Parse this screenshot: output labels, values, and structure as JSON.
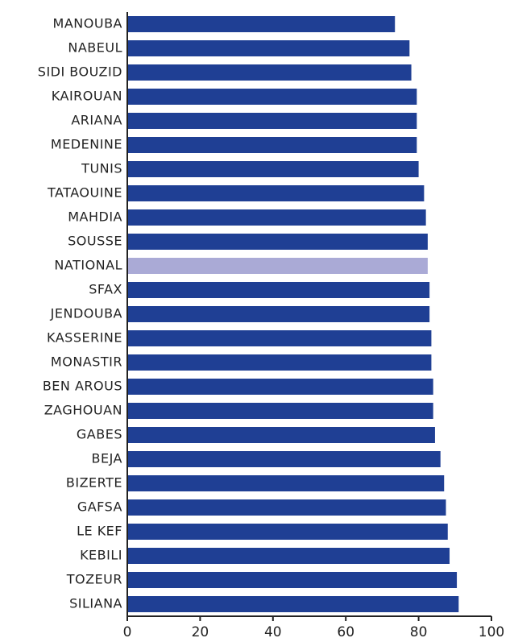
{
  "chart_data": {
    "type": "barh",
    "categories": [
      "MANOUBA",
      "NABEUL",
      "SIDI BOUZID",
      "KAIROUAN",
      "ARIANA",
      "MEDENINE",
      "TUNIS",
      "TATAOUINE",
      "MAHDIA",
      "SOUSSE",
      "NATIONAL",
      "SFAX",
      "JENDOUBA",
      "KASSERINE",
      "MONASTIR",
      "BEN AROUS",
      "ZAGHOUAN",
      "GABES",
      "BEJA",
      "BIZERTE",
      "GAFSA",
      "LE KEF",
      "KEBILI",
      "TOZEUR",
      "SILIANA"
    ],
    "values": [
      73.5,
      77.5,
      78,
      79.5,
      79.5,
      79.5,
      80,
      81.5,
      82,
      82.5,
      82.5,
      83,
      83,
      83.5,
      83.5,
      84,
      84,
      84.5,
      86,
      87,
      87.5,
      88,
      88.5,
      90.5,
      91
    ],
    "colors": [
      "#1f3f94",
      "#1f3f94",
      "#1f3f94",
      "#1f3f94",
      "#1f3f94",
      "#1f3f94",
      "#1f3f94",
      "#1f3f94",
      "#1f3f94",
      "#1f3f94",
      "#aaaad6",
      "#1f3f94",
      "#1f3f94",
      "#1f3f94",
      "#1f3f94",
      "#1f3f94",
      "#1f3f94",
      "#1f3f94",
      "#1f3f94",
      "#1f3f94",
      "#1f3f94",
      "#1f3f94",
      "#1f3f94",
      "#1f3f94",
      "#1f3f94"
    ],
    "xlim": [
      0,
      100
    ],
    "xticks": [
      0,
      20,
      40,
      60,
      80,
      100
    ],
    "grid": false
  }
}
